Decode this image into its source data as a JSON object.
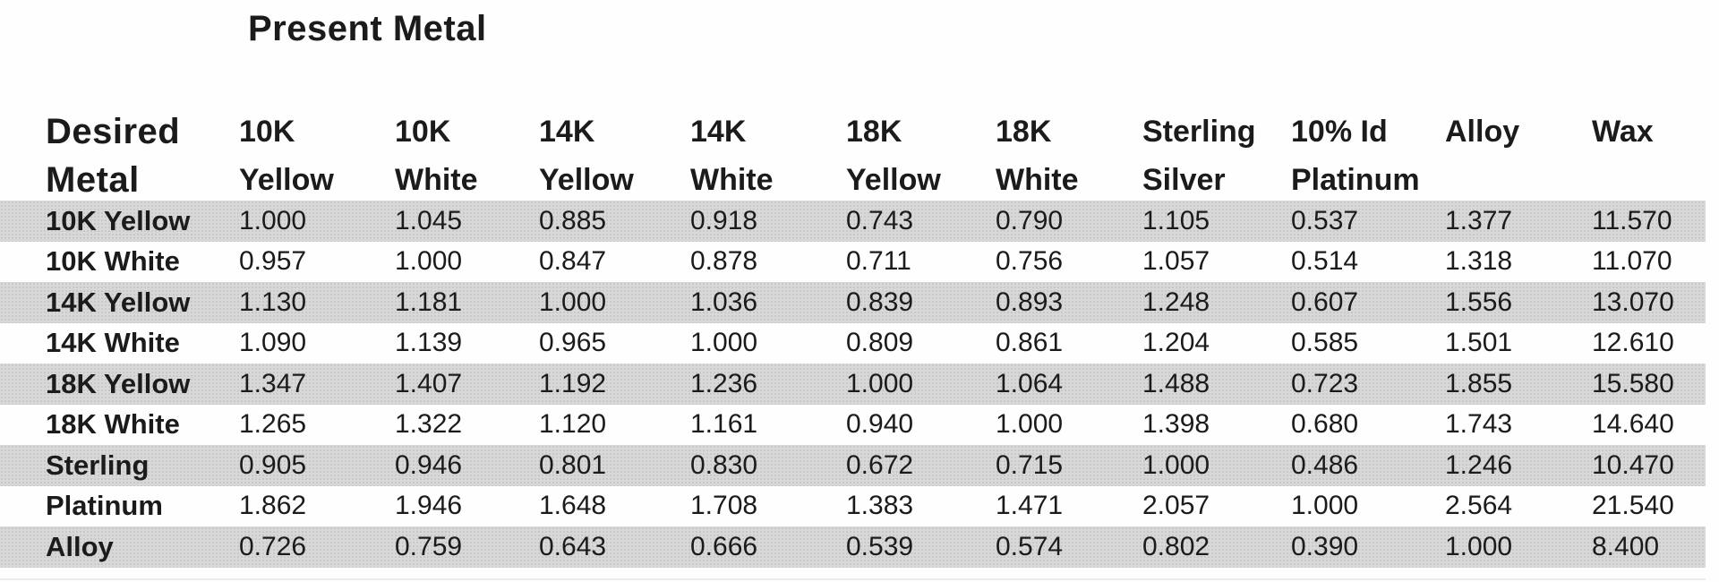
{
  "title": "Present Metal",
  "table": {
    "corner": {
      "line1": "Desired",
      "line2": "Metal"
    },
    "columns": [
      {
        "line1": "10K",
        "line2": "Yellow"
      },
      {
        "line1": "10K",
        "line2": "White"
      },
      {
        "line1": "14K",
        "line2": "Yellow"
      },
      {
        "line1": "14K",
        "line2": "White"
      },
      {
        "line1": "18K",
        "line2": "Yellow"
      },
      {
        "line1": "18K",
        "line2": "White"
      },
      {
        "line1": "Sterling",
        "line2": "Silver"
      },
      {
        "line1": "10% Id",
        "line2": "Platinum"
      },
      {
        "line1": "",
        "line2": "Alloy"
      },
      {
        "line1": "",
        "line2": "Wax"
      }
    ],
    "rows": [
      {
        "label": "10K Yellow",
        "shaded": true,
        "values": [
          "1.000",
          "1.045",
          "0.885",
          "0.918",
          "0.743",
          "0.790",
          "1.105",
          "0.537",
          "1.377",
          "11.570"
        ]
      },
      {
        "label": "10K White",
        "shaded": false,
        "values": [
          "0.957",
          "1.000",
          "0.847",
          "0.878",
          "0.711",
          "0.756",
          "1.057",
          "0.514",
          "1.318",
          "11.070"
        ]
      },
      {
        "label": "14K Yellow",
        "shaded": true,
        "values": [
          "1.130",
          "1.181",
          "1.000",
          "1.036",
          "0.839",
          "0.893",
          "1.248",
          "0.607",
          "1.556",
          "13.070"
        ]
      },
      {
        "label": "14K White",
        "shaded": false,
        "values": [
          "1.090",
          "1.139",
          "0.965",
          "1.000",
          "0.809",
          "0.861",
          "1.204",
          "0.585",
          "1.501",
          "12.610"
        ]
      },
      {
        "label": "18K Yellow",
        "shaded": true,
        "values": [
          "1.347",
          "1.407",
          "1.192",
          "1.236",
          "1.000",
          "1.064",
          "1.488",
          "0.723",
          "1.855",
          "15.580"
        ]
      },
      {
        "label": "18K White",
        "shaded": false,
        "values": [
          "1.265",
          "1.322",
          "1.120",
          "1.161",
          "0.940",
          "1.000",
          "1.398",
          "0.680",
          "1.743",
          "14.640"
        ]
      },
      {
        "label": "Sterling",
        "shaded": true,
        "values": [
          "0.905",
          "0.946",
          "0.801",
          "0.830",
          "0.672",
          "0.715",
          "1.000",
          "0.486",
          "1.246",
          "10.470"
        ]
      },
      {
        "label": "Platinum",
        "shaded": false,
        "values": [
          "1.862",
          "1.946",
          "1.648",
          "1.708",
          "1.383",
          "1.471",
          "2.057",
          "1.000",
          "2.564",
          "21.540"
        ]
      },
      {
        "label": "Alloy",
        "shaded": true,
        "values": [
          "0.726",
          "0.759",
          "0.643",
          "0.666",
          "0.539",
          "0.574",
          "0.802",
          "0.390",
          "1.000",
          "8.400"
        ]
      }
    ]
  },
  "colors": {
    "row_shade": "#d8d8d8",
    "row_shade_dot": "#c3c3c3",
    "text": "#1b1b1b",
    "background": "#ffffff"
  }
}
